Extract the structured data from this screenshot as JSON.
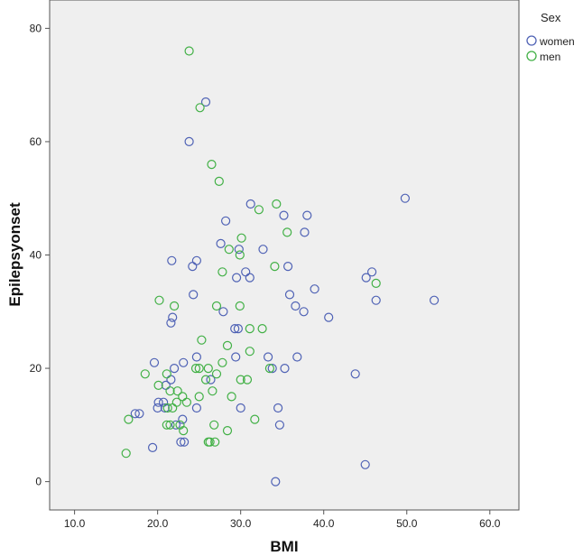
{
  "chart_data": {
    "type": "scatter",
    "xlabel": "BMI",
    "ylabel": "Epilepsyonset",
    "xlim": [
      7,
      63.5
    ],
    "ylim": [
      -5,
      85
    ],
    "x_ticks": [
      10,
      20,
      30,
      40,
      50,
      60
    ],
    "x_tick_labels": [
      "10.0",
      "20.0",
      "30.0",
      "40.0",
      "50.0",
      "60.0"
    ],
    "y_ticks": [
      0,
      20,
      40,
      60,
      80
    ],
    "y_tick_labels": [
      "0",
      "20",
      "40",
      "60",
      "80"
    ],
    "grid": false,
    "plot_background": "#efefef",
    "legend": {
      "title": "Sex",
      "position": "top-right outside"
    },
    "series": [
      {
        "name": "women",
        "color": "#4f62b5",
        "marker": "open-circle",
        "points": [
          [
            25.8,
            67
          ],
          [
            23.8,
            60
          ],
          [
            21.7,
            39
          ],
          [
            24.7,
            39
          ],
          [
            24.2,
            38
          ],
          [
            28.2,
            46
          ],
          [
            27.6,
            42
          ],
          [
            31.2,
            49
          ],
          [
            32.7,
            41
          ],
          [
            35.2,
            47
          ],
          [
            37.7,
            44
          ],
          [
            38.0,
            47
          ],
          [
            29.8,
            41
          ],
          [
            30.6,
            37
          ],
          [
            31.1,
            36
          ],
          [
            29.5,
            36
          ],
          [
            24.3,
            33
          ],
          [
            27.9,
            30
          ],
          [
            29.7,
            27
          ],
          [
            29.3,
            27
          ],
          [
            35.7,
            38
          ],
          [
            35.9,
            33
          ],
          [
            36.6,
            31
          ],
          [
            38.9,
            34
          ],
          [
            37.6,
            30
          ],
          [
            40.6,
            29
          ],
          [
            45.1,
            36
          ],
          [
            45.8,
            37
          ],
          [
            46.3,
            32
          ],
          [
            49.8,
            50
          ],
          [
            53.3,
            32
          ],
          [
            21.6,
            28
          ],
          [
            21.8,
            29
          ],
          [
            19.6,
            21
          ],
          [
            21.0,
            17
          ],
          [
            21.6,
            18
          ],
          [
            22.0,
            20
          ],
          [
            23.1,
            21
          ],
          [
            24.7,
            22
          ],
          [
            29.4,
            22
          ],
          [
            33.3,
            22
          ],
          [
            33.8,
            20
          ],
          [
            35.3,
            20
          ],
          [
            36.8,
            22
          ],
          [
            43.8,
            19
          ],
          [
            17.8,
            12
          ],
          [
            17.3,
            12
          ],
          [
            20.1,
            14
          ],
          [
            20.7,
            14
          ],
          [
            20.0,
            13
          ],
          [
            20.9,
            13
          ],
          [
            22.2,
            10
          ],
          [
            23.0,
            11
          ],
          [
            22.8,
            7
          ],
          [
            23.2,
            7
          ],
          [
            24.7,
            13
          ],
          [
            26.4,
            18
          ],
          [
            30.0,
            13
          ],
          [
            34.5,
            13
          ],
          [
            34.7,
            10
          ],
          [
            19.4,
            6
          ],
          [
            34.2,
            0
          ],
          [
            45.0,
            3
          ]
        ]
      },
      {
        "name": "men",
        "color": "#41b045",
        "marker": "open-circle",
        "points": [
          [
            23.8,
            76
          ],
          [
            25.1,
            66
          ],
          [
            26.5,
            56
          ],
          [
            27.4,
            53
          ],
          [
            32.2,
            48
          ],
          [
            34.3,
            49
          ],
          [
            35.6,
            44
          ],
          [
            30.1,
            43
          ],
          [
            29.9,
            40
          ],
          [
            28.6,
            41
          ],
          [
            27.8,
            37
          ],
          [
            34.1,
            38
          ],
          [
            20.2,
            32
          ],
          [
            22.0,
            31
          ],
          [
            29.9,
            31
          ],
          [
            27.1,
            31
          ],
          [
            25.3,
            25
          ],
          [
            28.4,
            24
          ],
          [
            31.1,
            27
          ],
          [
            32.6,
            27
          ],
          [
            31.1,
            23
          ],
          [
            27.8,
            21
          ],
          [
            24.6,
            20
          ],
          [
            25.0,
            20
          ],
          [
            26.1,
            20
          ],
          [
            27.1,
            19
          ],
          [
            30.0,
            18
          ],
          [
            30.8,
            18
          ],
          [
            33.5,
            20
          ],
          [
            46.3,
            35
          ],
          [
            18.5,
            19
          ],
          [
            20.1,
            17
          ],
          [
            21.1,
            19
          ],
          [
            21.5,
            16
          ],
          [
            22.4,
            16
          ],
          [
            23.0,
            15
          ],
          [
            23.5,
            14
          ],
          [
            22.3,
            14
          ],
          [
            25.0,
            15
          ],
          [
            25.8,
            18
          ],
          [
            26.6,
            16
          ],
          [
            28.9,
            15
          ],
          [
            16.5,
            11
          ],
          [
            21.2,
            13
          ],
          [
            21.8,
            13
          ],
          [
            21.1,
            10
          ],
          [
            21.5,
            10
          ],
          [
            22.7,
            10
          ],
          [
            23.1,
            9
          ],
          [
            26.8,
            10
          ],
          [
            28.4,
            9
          ],
          [
            31.7,
            11
          ],
          [
            26.1,
            7
          ],
          [
            26.3,
            7
          ],
          [
            26.9,
            7
          ],
          [
            16.2,
            5
          ]
        ]
      }
    ]
  }
}
